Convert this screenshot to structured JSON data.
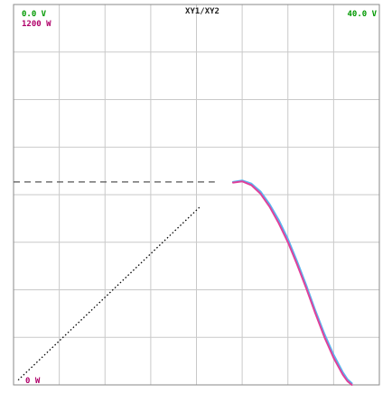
{
  "header": {
    "left_top": "0.0 V",
    "left_sub": "1200 W",
    "center": "XY1/XY2",
    "right_top": "40.0 V",
    "bottom_left": "0 W"
  },
  "colors": {
    "left_top": "#009900",
    "left_sub": "#b0006a",
    "center": "#222222",
    "right_top": "#009900",
    "bottom_left": "#b0006a",
    "grid": "#c9c9c9",
    "frame": "#8a8a8a",
    "curve1": "#5ab4f0",
    "curve2": "#e0409a",
    "dashed": "#555555",
    "dotted": "#000000"
  },
  "chart_data": {
    "type": "line",
    "title": "XY1/XY2",
    "x_range": [
      0,
      40
    ],
    "x_unit": "V",
    "y_range": [
      0,
      1200
    ],
    "y_unit": "W",
    "grid": true,
    "divisions": {
      "x": 8,
      "y": 8
    },
    "series": [
      {
        "style": "solid",
        "color": "#5ab4f0",
        "x": [
          24.0,
          25.0,
          26.0,
          27.0,
          28.0,
          29.0,
          30.0,
          31.0,
          32.0,
          33.0,
          34.0,
          35.0,
          36.0,
          36.5,
          37.0
        ],
        "y": [
          640,
          645,
          635,
          610,
          570,
          520,
          460,
          390,
          315,
          235,
          160,
          95,
          40,
          18,
          5
        ]
      },
      {
        "style": "solid",
        "color": "#e0409a",
        "x": [
          24.0,
          25.0,
          26.0,
          27.0,
          28.0,
          29.0,
          30.0,
          31.0,
          32.0,
          33.0,
          34.0,
          35.0,
          36.0,
          36.5,
          37.0
        ],
        "y": [
          638,
          642,
          630,
          603,
          562,
          510,
          450,
          380,
          305,
          226,
          150,
          85,
          32,
          12,
          0
        ]
      },
      {
        "style": "dashed",
        "color": "#555555",
        "x": [
          0.0,
          22.0
        ],
        "y": [
          640,
          640
        ]
      },
      {
        "style": "dotted",
        "color": "#000000",
        "x": [
          0.5,
          20.5
        ],
        "y": [
          15,
          565
        ]
      }
    ]
  }
}
